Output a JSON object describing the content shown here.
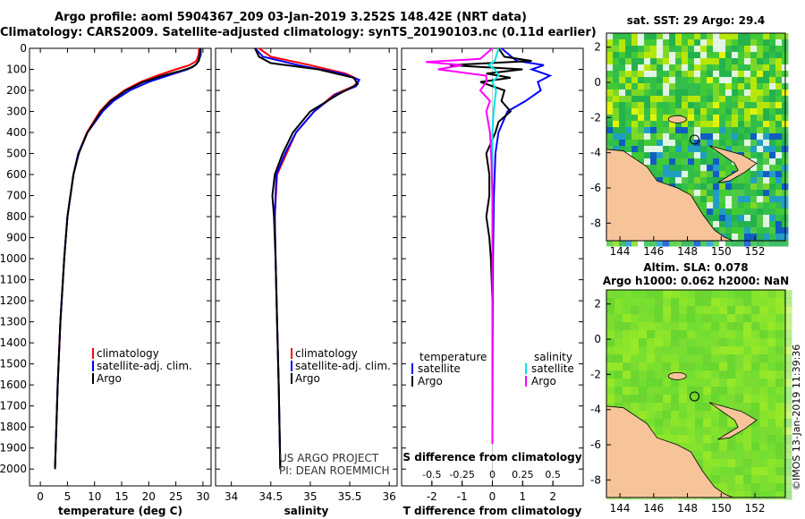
{
  "title_line1": "Argo profile: aoml 5904367_209 03-Jan-2019 3.252S 148.42E (NRT data)",
  "title_line2": "Climatology: CARS2009. Satellite-adjusted climatology: synTS_20190103.nc (0.11d earlier)",
  "colors": {
    "climatology": "#ff0000",
    "satellite": "#0000ff",
    "argo": "#000000",
    "sat_salinity": "#00e5e5",
    "argo_salinity": "#ff00ff",
    "land": "#f7c49a"
  },
  "credits": {
    "line1": "US ARGO PROJECT",
    "line2": "PI: DEAN ROEMMICH",
    "imos": "©IMOS 13-Jan-2019 11:39:36"
  },
  "chart_data": [
    {
      "type": "line",
      "name": "temperature",
      "xlabel": "temperature (deg C)",
      "ylabel": "",
      "xlim": [
        -2,
        31.5
      ],
      "ylim": [
        0,
        2080
      ],
      "xticks": [
        0,
        5,
        10,
        15,
        20,
        25,
        30
      ],
      "xtick_labels": [
        "0",
        "5",
        "10",
        "15",
        "20",
        "25",
        "30"
      ],
      "yticks": [
        0,
        100,
        200,
        300,
        400,
        500,
        600,
        700,
        800,
        900,
        1000,
        1100,
        1200,
        1300,
        1400,
        1500,
        1600,
        1700,
        1800,
        1900,
        2000
      ],
      "ytick_labels": [
        "0",
        "100",
        "200",
        "300",
        "400",
        "500",
        "600",
        "700",
        "800",
        "900",
        "1000",
        "1100",
        "1200",
        "1300",
        "1400",
        "1500",
        "1600",
        "1700",
        "1800",
        "1900",
        "2000"
      ],
      "legend": [
        "climatology",
        "satellite-adj. clim.",
        "Argo"
      ],
      "series": [
        {
          "name": "climatology",
          "depth": [
            0,
            30,
            60,
            80,
            100,
            130,
            160,
            200,
            250,
            300,
            400,
            500,
            600,
            800,
            1000,
            1300,
            1600,
            2000
          ],
          "values": [
            29.3,
            29.2,
            28.8,
            27.5,
            25,
            21.5,
            18.5,
            15.5,
            12.8,
            11,
            8.6,
            7,
            6.1,
            5,
            4.4,
            3.7,
            3.2,
            2.7
          ]
        },
        {
          "name": "satellite-adj. clim.",
          "depth": [
            0,
            30,
            60,
            80,
            100,
            130,
            160,
            200,
            250,
            300,
            400,
            500,
            600,
            800,
            1000,
            1300,
            1600,
            2000
          ],
          "values": [
            29.6,
            29.6,
            29.2,
            28.6,
            27.2,
            23.5,
            20,
            16.5,
            13.5,
            11.5,
            8.7,
            7,
            6.1,
            5,
            4.4,
            3.7,
            3.2,
            2.7
          ]
        },
        {
          "name": "Argo",
          "depth": [
            0,
            30,
            60,
            75,
            90,
            110,
            130,
            160,
            200,
            250,
            300,
            400,
            500,
            600,
            800,
            1000,
            1300,
            1600,
            2000
          ],
          "values": [
            29.5,
            29.4,
            29.2,
            28.8,
            28,
            25.5,
            22.5,
            19,
            15.8,
            13,
            11.2,
            8.7,
            7.1,
            6.1,
            5,
            4.4,
            3.7,
            3.2,
            2.7
          ]
        }
      ]
    },
    {
      "type": "line",
      "name": "salinity",
      "xlabel": "salinity",
      "xlim": [
        33.8,
        36.1
      ],
      "ylim": [
        0,
        2080
      ],
      "xticks": [
        34,
        34.5,
        35,
        35.5,
        36
      ],
      "xtick_labels": [
        "34",
        "34.5",
        "35",
        "35.5",
        "36"
      ],
      "legend": [
        "climatology",
        "satellite-adj. clim.",
        "Argo"
      ],
      "series": [
        {
          "name": "climatology",
          "depth": [
            0,
            40,
            80,
            120,
            150,
            180,
            220,
            300,
            400,
            500,
            600,
            800,
            1000,
            1300,
            1600,
            2000
          ],
          "values": [
            34.35,
            34.5,
            35.0,
            35.45,
            35.62,
            35.55,
            35.3,
            35.05,
            34.82,
            34.7,
            34.58,
            34.55,
            34.56,
            34.58,
            34.6,
            34.62
          ]
        },
        {
          "name": "satellite-adj. clim.",
          "depth": [
            0,
            40,
            80,
            120,
            150,
            180,
            220,
            300,
            400,
            500,
            600,
            800,
            1000,
            1300,
            1600,
            2000
          ],
          "values": [
            34.3,
            34.4,
            34.85,
            35.4,
            35.62,
            35.58,
            35.32,
            35.05,
            34.82,
            34.68,
            34.57,
            34.55,
            34.56,
            34.58,
            34.6,
            34.62
          ]
        },
        {
          "name": "Argo",
          "depth": [
            0,
            40,
            70,
            100,
            140,
            170,
            220,
            300,
            400,
            500,
            600,
            700,
            800,
            1000,
            1300,
            1600,
            2000
          ],
          "values": [
            34.3,
            34.35,
            34.5,
            35.1,
            35.55,
            35.6,
            35.35,
            35.0,
            34.78,
            34.65,
            34.55,
            34.52,
            34.54,
            34.56,
            34.58,
            34.6,
            34.62
          ]
        }
      ]
    },
    {
      "type": "line",
      "name": "difference",
      "xlabel": "T difference from climatology",
      "xlabel_top": "S difference from climatology",
      "xlim": [
        -3,
        3
      ],
      "ylim": [
        0,
        2080
      ],
      "xticks": [
        -2,
        -1,
        0,
        1,
        2
      ],
      "xtick_labels": [
        "-2",
        "-1",
        "0",
        "1",
        "2"
      ],
      "sticks": [
        -0.5,
        -0.25,
        0,
        0.25,
        0.5
      ],
      "stick_labels": [
        "-0.5",
        "-0.25",
        "0",
        "0.25",
        "0.5"
      ],
      "legend_left_title": "temperature",
      "legend_right_title": "salinity",
      "legend_left": [
        "satellite",
        "Argo"
      ],
      "legend_right": [
        "satellite",
        "Argo"
      ],
      "series": [
        {
          "name": "T satellite",
          "depth": [
            0,
            60,
            80,
            100,
            130,
            160,
            200,
            250,
            300,
            400,
            500,
            700,
            1000,
            1400,
            1800,
            1880
          ],
          "values": [
            0.3,
            0.8,
            1.7,
            1.3,
            1.9,
            1.5,
            1.6,
            1.1,
            0.5,
            0.2,
            0.1,
            0.05,
            0.02,
            0.01,
            0.0,
            0.0
          ]
        },
        {
          "name": "T Argo",
          "depth": [
            0,
            40,
            60,
            80,
            100,
            120,
            140,
            160,
            200,
            250,
            300,
            350,
            400,
            500,
            600,
            700,
            800,
            900,
            1000,
            1200,
            1400,
            1600,
            1800,
            1880
          ],
          "values": [
            0.2,
            0.4,
            1.3,
            -1.4,
            1.0,
            -0.2,
            0.6,
            -0.4,
            0.4,
            0.3,
            0.6,
            0.2,
            0.1,
            -0.2,
            -0.1,
            -0.1,
            -0.2,
            -0.1,
            -0.05,
            0.0,
            0.0,
            0.0,
            0.0,
            0.0
          ]
        },
        {
          "name": "S satellite",
          "depth": [
            0,
            60,
            80,
            100,
            130,
            160,
            200,
            250,
            300,
            400,
            500,
            700,
            1000,
            1400,
            1800,
            1880
          ],
          "values": [
            0.05,
            0.02,
            -0.03,
            0.02,
            0.05,
            0.0,
            0.03,
            0.02,
            0.01,
            0.0,
            0.0,
            0.0,
            0.0,
            0.0,
            0.0,
            0.0
          ]
        },
        {
          "name": "S Argo",
          "depth": [
            0,
            50,
            65,
            80,
            100,
            130,
            160,
            200,
            250,
            300,
            400,
            500,
            700,
            1000,
            1400,
            1800,
            1880
          ],
          "values": [
            0.0,
            -0.1,
            -0.55,
            -0.25,
            -0.45,
            -0.05,
            -0.05,
            -0.1,
            -0.02,
            -0.05,
            -0.02,
            -0.01,
            0.0,
            0.0,
            0.0,
            0.0,
            0.0
          ]
        }
      ]
    },
    {
      "type": "heatmap",
      "name": "sst-map",
      "title": "sat. SST: 29 Argo: 29.4",
      "xlim": [
        143.2,
        153.8
      ],
      "ylim": [
        -9,
        2.8
      ],
      "xticks": [
        144,
        146,
        148,
        150,
        152
      ],
      "xtick_labels": [
        "144",
        "146",
        "148",
        "150",
        "152"
      ],
      "yticks": [
        2,
        0,
        -2,
        -4,
        -6,
        -8
      ],
      "ytick_labels": [
        "2",
        "0",
        "-2",
        "-4",
        "-6",
        "-8"
      ],
      "marker": [
        148.42,
        -3.252
      ]
    },
    {
      "type": "heatmap",
      "name": "sla-map",
      "title": "Altim. SLA: 0.078",
      "subtitle": "Argo h1000: 0.062 h2000: NaN",
      "xlim": [
        143.2,
        153.8
      ],
      "ylim": [
        -9,
        2.8
      ],
      "xticks": [
        144,
        146,
        148,
        150,
        152
      ],
      "xtick_labels": [
        "144",
        "146",
        "148",
        "150",
        "152"
      ],
      "yticks": [
        2,
        0,
        -2,
        -4,
        -6,
        -8
      ],
      "ytick_labels": [
        "2",
        "0",
        "-2",
        "-4",
        "-6",
        "-8"
      ],
      "marker": [
        148.42,
        -3.252
      ]
    }
  ]
}
